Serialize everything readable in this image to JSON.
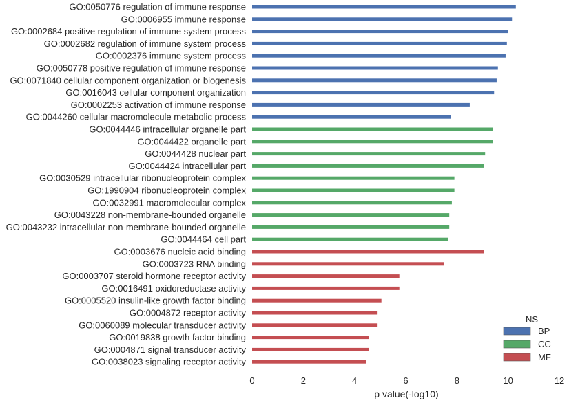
{
  "chart_data": {
    "type": "bar",
    "orientation": "horizontal",
    "title": "",
    "xlabel": "p value(-log10)",
    "ylabel": "",
    "xlim": [
      0,
      12
    ],
    "xticks": [
      0,
      2,
      4,
      6,
      8,
      10,
      12
    ],
    "grid": false,
    "legend": {
      "title": "NS",
      "position": "bottom-right",
      "entries": [
        {
          "name": "BP",
          "color": "#4c72b0"
        },
        {
          "name": "CC",
          "color": "#55a868"
        },
        {
          "name": "MF",
          "color": "#c44e52"
        }
      ]
    },
    "categories": [
      "GO:0050776 regulation of immune response",
      "GO:0006955 immune response",
      "GO:0002684 positive regulation of immune system process",
      "GO:0002682 regulation of immune system process",
      "GO:0002376 immune system process",
      "GO:0050778 positive regulation of immune response",
      "GO:0071840 cellular component organization or biogenesis",
      "GO:0016043 cellular component organization",
      "GO:0002253 activation of immune response",
      "GO:0044260 cellular macromolecule metabolic process",
      "GO:0044446 intracellular organelle part",
      "GO:0044422 organelle part",
      "GO:0044428 nuclear part",
      "GO:0044424 intracellular part",
      "GO:0030529 intracellular ribonucleoprotein complex",
      "GO:1990904 ribonucleoprotein complex",
      "GO:0032991 macromolecular complex",
      "GO:0043228 non-membrane-bounded organelle",
      "GO:0043232 intracellular non-membrane-bounded organelle",
      "GO:0044464 cell part",
      "GO:0003676 nucleic acid binding",
      "GO:0003723 RNA binding",
      "GO:0003707 steroid hormone receptor activity",
      "GO:0016491 oxidoreductase activity",
      "GO:0005520 insulin-like growth factor binding",
      "GO:0004872 receptor activity",
      "GO:0060089 molecular transducer activity",
      "GO:0019838 growth factor binding",
      "GO:0004871 signal transducer activity",
      "GO:0038023 signaling receptor activity"
    ],
    "series": [
      {
        "name": "BP",
        "color": "#4c72b0",
        "values": [
          10.3,
          10.15,
          10.0,
          9.95,
          9.9,
          9.6,
          9.55,
          9.45,
          8.5,
          7.75,
          null,
          null,
          null,
          null,
          null,
          null,
          null,
          null,
          null,
          null,
          null,
          null,
          null,
          null,
          null,
          null,
          null,
          null,
          null,
          null
        ]
      },
      {
        "name": "CC",
        "color": "#55a868",
        "values": [
          null,
          null,
          null,
          null,
          null,
          null,
          null,
          null,
          null,
          null,
          9.4,
          9.4,
          9.1,
          9.05,
          7.9,
          7.9,
          7.8,
          7.7,
          7.7,
          7.65,
          null,
          null,
          null,
          null,
          null,
          null,
          null,
          null,
          null,
          null
        ]
      },
      {
        "name": "MF",
        "color": "#c44e52",
        "values": [
          null,
          null,
          null,
          null,
          null,
          null,
          null,
          null,
          null,
          null,
          null,
          null,
          null,
          null,
          null,
          null,
          null,
          null,
          null,
          null,
          9.05,
          7.5,
          5.75,
          5.75,
          5.05,
          4.9,
          4.9,
          4.55,
          4.55,
          4.45
        ]
      }
    ]
  }
}
